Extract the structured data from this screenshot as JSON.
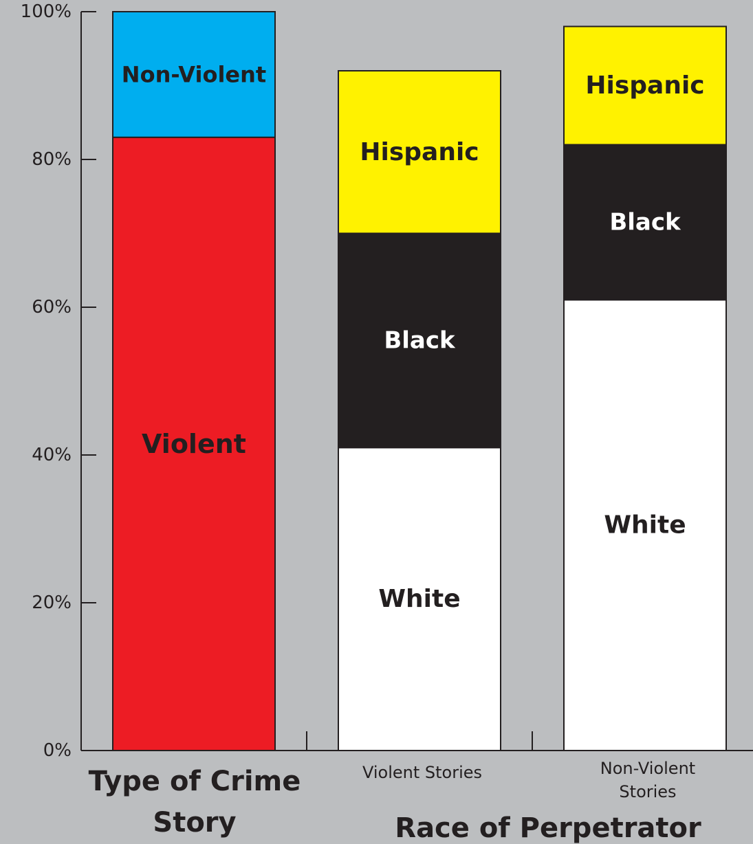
{
  "chart_data": {
    "type": "bar",
    "stacked": true,
    "ylim": [
      0,
      100
    ],
    "y_ticks": [
      "0%",
      "20%",
      "40%",
      "60%",
      "80%",
      "100%"
    ],
    "grid": false,
    "colors": {
      "background": "#bcbec0",
      "Violent": "#ed1c24",
      "Non-Violent": "#00aeef",
      "White": "#ffffff",
      "Black": "#231f20",
      "Hispanic": "#fff200"
    },
    "bars": [
      {
        "category": "",
        "segments": [
          {
            "name": "Violent",
            "value": 83
          },
          {
            "name": "Non-Violent",
            "value": 17
          }
        ]
      },
      {
        "category": "Violent Stories",
        "segments": [
          {
            "name": "White",
            "value": 41
          },
          {
            "name": "Black",
            "value": 29
          },
          {
            "name": "Hispanic",
            "value": 22
          }
        ]
      },
      {
        "category": "Non-Violent Stories",
        "segments": [
          {
            "name": "White",
            "value": 61
          },
          {
            "name": "Black",
            "value": 21
          },
          {
            "name": "Hispanic",
            "value": 16
          }
        ]
      }
    ],
    "group_labels": [
      "Type of Crime Story",
      "Race of Perpetrator"
    ]
  }
}
